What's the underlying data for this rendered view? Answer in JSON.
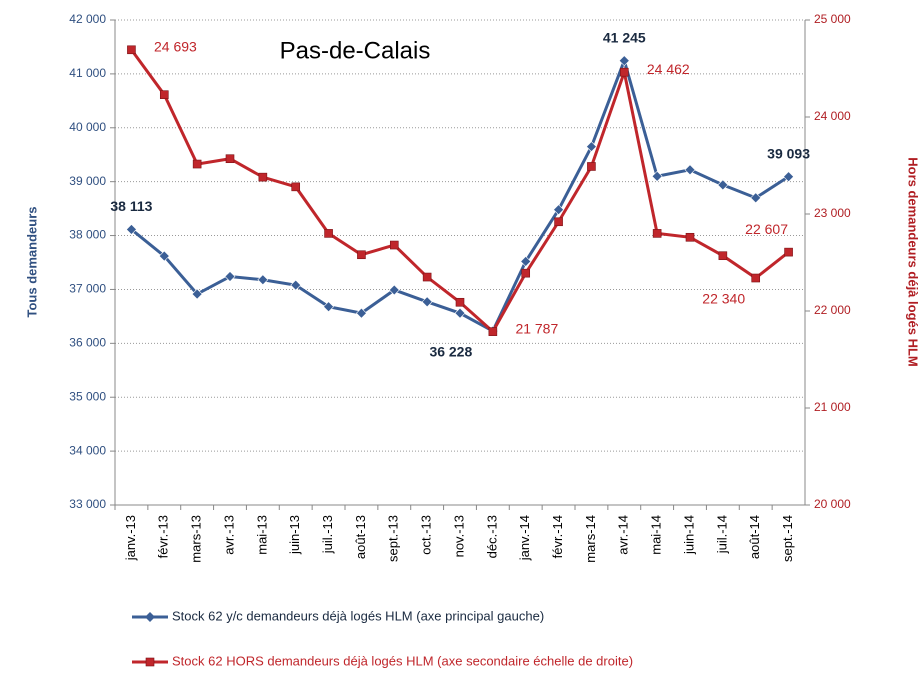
{
  "chart_data": {
    "type": "line",
    "title": "Pas-de-Calais",
    "ylabel": "Tous demandeurs",
    "y2label": "Hors demandeurs déjà logés HLM",
    "categories": [
      "janv.-13",
      "févr.-13",
      "mars-13",
      "avr.-13",
      "mai-13",
      "juin-13",
      "juil.-13",
      "août-13",
      "sept.-13",
      "oct.-13",
      "nov.-13",
      "déc.-13",
      "janv.-14",
      "févr.-14",
      "mars-14",
      "avr.-14",
      "mai-14",
      "juin-14",
      "juil.-14",
      "août-14",
      "sept.-14"
    ],
    "series": [
      {
        "name": "Stock 62 y/c demandeurs déjà logés HLM (axe principal gauche)",
        "color": "#3b5f96",
        "axis": "y",
        "values": [
          38113,
          37620,
          36915,
          37240,
          37180,
          37080,
          36680,
          36560,
          36990,
          36770,
          36560,
          36228,
          37520,
          38480,
          39650,
          41245,
          39100,
          39220,
          38940,
          38700,
          39093
        ],
        "value_labels": [
          "38 113",
          null,
          null,
          null,
          null,
          null,
          null,
          null,
          null,
          null,
          null,
          "36 228",
          null,
          null,
          null,
          "41 245",
          null,
          null,
          null,
          null,
          "39 093"
        ]
      },
      {
        "name": "Stock 62 HORS demandeurs déjà logés HLM (axe secondaire  échelle de droite)",
        "color": "#c0262b",
        "axis": "y2",
        "values": [
          24693,
          24230,
          23515,
          23570,
          23380,
          23280,
          22800,
          22580,
          22680,
          22350,
          22090,
          21787,
          22390,
          22920,
          23490,
          24462,
          22800,
          22760,
          22570,
          22340,
          22607
        ],
        "value_labels": [
          "24 693",
          null,
          null,
          null,
          null,
          null,
          null,
          null,
          null,
          null,
          null,
          "21 787",
          null,
          null,
          null,
          "24 462",
          null,
          null,
          null,
          "22 340",
          "22 607"
        ]
      }
    ],
    "ylim": [
      33000,
      42000
    ],
    "yticks": [
      {
        "value": 33000,
        "label": "33 000"
      },
      {
        "value": 34000,
        "label": "34 000"
      },
      {
        "value": 35000,
        "label": "35 000"
      },
      {
        "value": 36000,
        "label": "36 000"
      },
      {
        "value": 37000,
        "label": "37 000"
      },
      {
        "value": 38000,
        "label": "38 000"
      },
      {
        "value": 39000,
        "label": "39 000"
      },
      {
        "value": 40000,
        "label": "40 000"
      },
      {
        "value": 41000,
        "label": "41 000"
      },
      {
        "value": 42000,
        "label": "42 000"
      }
    ],
    "y2lim": [
      20000,
      25000
    ],
    "y2ticks": [
      {
        "value": 20000,
        "label": "20 000"
      },
      {
        "value": 21000,
        "label": "21 000"
      },
      {
        "value": 22000,
        "label": "22 000"
      },
      {
        "value": 23000,
        "label": "23 000"
      },
      {
        "value": 24000,
        "label": "24 000"
      },
      {
        "value": 25000,
        "label": "25 000"
      }
    ],
    "grid": true
  }
}
